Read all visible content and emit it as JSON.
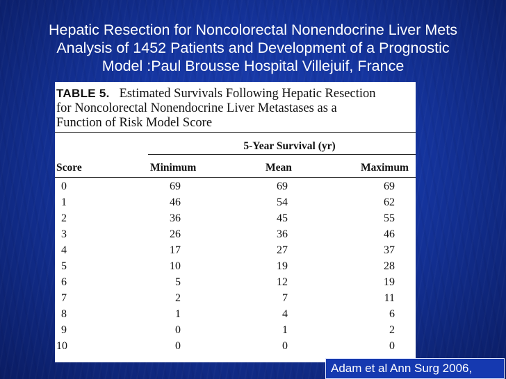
{
  "slide": {
    "title_lines": [
      "Hepatic Resection for Noncolorectal Nonendocrine Liver Mets",
      "Analysis of 1452 Patients and Development of a Prognostic",
      "Model :Paul Brousse Hospital Villejuif, France"
    ],
    "citation": "Adam et al Ann Surg 2006,"
  },
  "table": {
    "label": "TABLE 5.",
    "caption_line1": "Estimated Survivals Following Hepatic Resection",
    "caption_line2": "for Noncolorectal Nonendocrine Liver Metastases as a",
    "caption_line3": "Function of Risk Model Score",
    "spanning_header": "5-Year Survival (yr)",
    "columns": [
      "Score",
      "Minimum",
      "Mean",
      "Maximum"
    ],
    "rows": [
      {
        "score": "0",
        "min": "69",
        "mean": "69",
        "max": "69"
      },
      {
        "score": "1",
        "min": "46",
        "mean": "54",
        "max": "62"
      },
      {
        "score": "2",
        "min": "36",
        "mean": "45",
        "max": "55"
      },
      {
        "score": "3",
        "min": "26",
        "mean": "36",
        "max": "46"
      },
      {
        "score": "4",
        "min": "17",
        "mean": "27",
        "max": "37"
      },
      {
        "score": "5",
        "min": "10",
        "mean": "19",
        "max": "28"
      },
      {
        "score": "6",
        "min": "5",
        "mean": "12",
        "max": "19"
      },
      {
        "score": "7",
        "min": "2",
        "mean": "7",
        "max": "11"
      },
      {
        "score": "8",
        "min": "1",
        "mean": "4",
        "max": "6"
      },
      {
        "score": "9",
        "min": "0",
        "mean": "1",
        "max": "2"
      },
      {
        "score": "10",
        "min": "0",
        "mean": "0",
        "max": "0"
      }
    ]
  }
}
